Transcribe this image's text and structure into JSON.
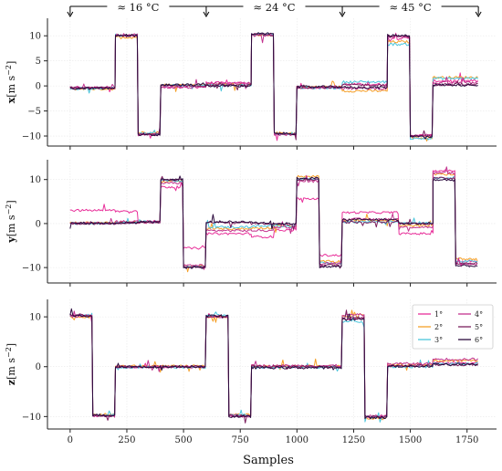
{
  "annotations": {
    "temperatures": [
      {
        "text": "≈ 16 °C",
        "x_start": 0,
        "x_end": 600
      },
      {
        "text": "≈ 24 °C",
        "x_start": 600,
        "x_end": 1200
      },
      {
        "text": "≈ 45 °C",
        "x_start": 1200,
        "x_end": 1800
      }
    ],
    "arrow_positions": [
      0,
      600,
      1200,
      1800
    ]
  },
  "colors": {
    "1°": "#e8309a",
    "2°": "#f5a02a",
    "3°": "#4cc6dc",
    "4°": "#c2348f",
    "5°": "#7b1f5e",
    "6°": "#2b0a3d",
    "grid": "#e8e8e8",
    "axis": "#222222"
  },
  "chart_data": [
    {
      "type": "line",
      "panel": "x",
      "ylabel_bold": "x",
      "ylabel_unit": "[m s",
      "ylabel_exp": "−2",
      "xlim": [
        -100,
        1880
      ],
      "ylim": [
        -12,
        13.5
      ],
      "yticks": [
        10,
        5,
        0,
        -5,
        -10
      ],
      "xticks": [
        0,
        250,
        500,
        750,
        1000,
        1250,
        1500,
        1750
      ],
      "grid": true,
      "segments": [
        {
          "start": 0,
          "end": 200,
          "values": {
            "1°": -0.4,
            "2°": -0.6,
            "3°": -0.5,
            "4°": -0.3,
            "5°": -0.4,
            "6°": -0.5
          }
        },
        {
          "start": 200,
          "end": 300,
          "values": {
            "1°": 10.0,
            "2°": 9.7,
            "3°": 10.1,
            "4°": 10.2,
            "5°": 10.0,
            "6°": 10.1
          }
        },
        {
          "start": 300,
          "end": 400,
          "values": {
            "1°": -9.6,
            "2°": -9.3,
            "3°": -9.5,
            "4°": -9.7,
            "5°": -9.6,
            "6°": -9.8
          }
        },
        {
          "start": 400,
          "end": 600,
          "values": {
            "1°": -0.2,
            "2°": 0.2,
            "3°": 0.1,
            "4°": -0.3,
            "5°": 0.0,
            "6°": 0.2
          }
        },
        {
          "start": 600,
          "end": 800,
          "values": {
            "1°": 0.6,
            "2°": 0.3,
            "3°": 0.2,
            "4°": 0.5,
            "5°": 0.1,
            "6°": 0.0
          }
        },
        {
          "start": 800,
          "end": 900,
          "values": {
            "1°": 10.2,
            "2°": 10.0,
            "3°": 10.3,
            "4°": 10.1,
            "5°": 10.2,
            "6°": 10.4
          }
        },
        {
          "start": 900,
          "end": 1000,
          "values": {
            "1°": -9.6,
            "2°": -9.4,
            "3°": -9.5,
            "4°": -9.7,
            "5°": -9.6,
            "6°": -9.5
          }
        },
        {
          "start": 1000,
          "end": 1200,
          "values": {
            "1°": -0.3,
            "2°": -0.2,
            "3°": -0.4,
            "4°": -0.3,
            "5°": -0.3,
            "6°": -0.2
          }
        },
        {
          "start": 1200,
          "end": 1400,
          "values": {
            "1°": 0.3,
            "2°": -1.0,
            "3°": 0.8,
            "4°": -0.5,
            "5°": 0.2,
            "6°": -0.3
          }
        },
        {
          "start": 1400,
          "end": 1500,
          "values": {
            "1°": 9.5,
            "2°": 8.8,
            "3°": 8.3,
            "4°": 9.8,
            "5°": 9.9,
            "6°": 10.1
          }
        },
        {
          "start": 1500,
          "end": 1600,
          "values": {
            "1°": -9.9,
            "2°": -10.3,
            "3°": -10.5,
            "4°": -9.8,
            "5°": -10.0,
            "6°": -10.1
          }
        },
        {
          "start": 1600,
          "end": 1800,
          "values": {
            "1°": 1.0,
            "2°": 1.7,
            "3°": 1.5,
            "4°": 0.6,
            "5°": 0.3,
            "6°": 0.2
          }
        }
      ]
    },
    {
      "type": "line",
      "panel": "y",
      "ylabel_bold": "y",
      "ylabel_unit": "[m s",
      "ylabel_exp": "−2",
      "xlim": [
        -100,
        1880
      ],
      "ylim": [
        -13.5,
        14.5
      ],
      "yticks": [
        10,
        0,
        -10
      ],
      "xticks": [
        0,
        250,
        500,
        750,
        1000,
        1250,
        1500,
        1750
      ],
      "grid": true,
      "segments": [
        {
          "start": 0,
          "end": 200,
          "values": {
            "1°": 3.0,
            "2°": 0.2,
            "3°": 0.0,
            "4°": 0.1,
            "5°": 0.0,
            "6°": 0.1
          }
        },
        {
          "start": 200,
          "end": 300,
          "values": {
            "1°": 2.8,
            "2°": 0.3,
            "3°": 0.2,
            "4°": 0.5,
            "5°": 0.1,
            "6°": 0.2
          }
        },
        {
          "start": 300,
          "end": 400,
          "values": {
            "1°": 0.5,
            "2°": 0.3,
            "3°": 0.4,
            "4°": 0.2,
            "5°": 0.3,
            "6°": 0.4
          }
        },
        {
          "start": 400,
          "end": 500,
          "values": {
            "1°": 8.3,
            "2°": 9.6,
            "3°": 9.8,
            "4°": 9.2,
            "5°": 9.9,
            "6°": 10.0
          }
        },
        {
          "start": 500,
          "end": 600,
          "values": {
            "1°": -5.6,
            "2°": -9.6,
            "3°": -9.8,
            "4°": -9.5,
            "5°": -9.9,
            "6°": -10.0
          }
        },
        {
          "start": 600,
          "end": 800,
          "values": {
            "1°": -2.3,
            "2°": -1.2,
            "3°": -0.8,
            "4°": -1.6,
            "5°": 0.2,
            "6°": 0.4
          }
        },
        {
          "start": 800,
          "end": 900,
          "values": {
            "1°": -3.0,
            "2°": -1.0,
            "3°": -0.6,
            "4°": -1.6,
            "5°": 0.0,
            "6°": 0.2
          }
        },
        {
          "start": 900,
          "end": 1000,
          "values": {
            "1°": -1.5,
            "2°": -0.5,
            "3°": -0.5,
            "4°": -0.8,
            "5°": -0.1,
            "6°": 0.0
          }
        },
        {
          "start": 1000,
          "end": 1100,
          "values": {
            "1°": 5.6,
            "2°": 10.7,
            "3°": 10.2,
            "4°": 9.6,
            "5°": 10.0,
            "6°": 10.3
          }
        },
        {
          "start": 1100,
          "end": 1200,
          "values": {
            "1°": -7.2,
            "2°": -8.6,
            "3°": -9.0,
            "4°": -9.0,
            "5°": -9.4,
            "6°": -9.8
          }
        },
        {
          "start": 1200,
          "end": 1450,
          "values": {
            "1°": 2.5,
            "2°": 0.8,
            "3°": 0.4,
            "4°": 1.0,
            "5°": 0.3,
            "6°": 0.9
          }
        },
        {
          "start": 1450,
          "end": 1600,
          "values": {
            "1°": -2.3,
            "2°": -0.5,
            "3°": 0.2,
            "4°": -0.8,
            "5°": 0.0,
            "6°": 0.0
          }
        },
        {
          "start": 1600,
          "end": 1700,
          "values": {
            "1°": 12.0,
            "2°": 11.2,
            "3°": 10.4,
            "4°": 11.5,
            "5°": 10.3,
            "6°": 9.9
          }
        },
        {
          "start": 1700,
          "end": 1800,
          "values": {
            "1°": -8.6,
            "2°": -8.0,
            "3°": -8.5,
            "4°": -9.2,
            "5°": -9.0,
            "6°": -9.6
          }
        }
      ]
    },
    {
      "type": "line",
      "panel": "z",
      "ylabel_bold": "z",
      "ylabel_unit": "[m s",
      "ylabel_exp": "−2",
      "xlim": [
        -100,
        1880
      ],
      "ylim": [
        -12.5,
        13.5
      ],
      "yticks": [
        10,
        0,
        -10
      ],
      "xticks": [
        0,
        250,
        500,
        750,
        1000,
        1250,
        1500,
        1750
      ],
      "grid": true,
      "legend": {
        "placement": "top-right",
        "ncol": 2
      },
      "series": [
        "1°",
        "2°",
        "3°",
        "4°",
        "5°",
        "6°"
      ],
      "segments": [
        {
          "start": 0,
          "end": 100,
          "values": {
            "1°": 10.2,
            "2°": 10.0,
            "3°": 10.3,
            "4°": 10.1,
            "5°": 10.4,
            "6°": 10.2
          }
        },
        {
          "start": 100,
          "end": 200,
          "values": {
            "1°": -9.8,
            "2°": -9.6,
            "3°": -9.7,
            "4°": -9.9,
            "5°": -9.8,
            "6°": -9.7
          }
        },
        {
          "start": 200,
          "end": 600,
          "values": {
            "1°": 0.0,
            "2°": 0.1,
            "3°": -0.1,
            "4°": 0.0,
            "5°": 0.0,
            "6°": 0.0
          }
        },
        {
          "start": 600,
          "end": 700,
          "values": {
            "1°": 10.1,
            "2°": 10.0,
            "3°": 10.3,
            "4°": 10.0,
            "5°": 10.1,
            "6°": 10.2
          }
        },
        {
          "start": 700,
          "end": 800,
          "values": {
            "1°": -9.8,
            "2°": -9.6,
            "3°": -9.7,
            "4°": -9.9,
            "5°": -9.8,
            "6°": -10.0
          }
        },
        {
          "start": 800,
          "end": 1200,
          "values": {
            "1°": 0.0,
            "2°": 0.1,
            "3°": -0.1,
            "4°": 0.2,
            "5°": 0.0,
            "6°": -0.2
          }
        },
        {
          "start": 1200,
          "end": 1300,
          "values": {
            "1°": 9.6,
            "2°": 10.2,
            "3°": 9.0,
            "4°": 10.4,
            "5°": 9.8,
            "6°": 9.5
          }
        },
        {
          "start": 1300,
          "end": 1400,
          "values": {
            "1°": -10.0,
            "2°": -10.3,
            "3°": -10.1,
            "4°": -9.9,
            "5°": -10.0,
            "6°": -10.2
          }
        },
        {
          "start": 1400,
          "end": 1600,
          "values": {
            "1°": 0.3,
            "2°": 0.4,
            "3°": 0.0,
            "4°": 0.6,
            "5°": 0.2,
            "6°": 0.1
          }
        },
        {
          "start": 1600,
          "end": 1800,
          "values": {
            "1°": 0.8,
            "2°": 1.2,
            "3°": 0.6,
            "4°": 1.5,
            "5°": 0.4,
            "6°": 0.5
          }
        }
      ]
    }
  ],
  "xlabel": "Samples"
}
